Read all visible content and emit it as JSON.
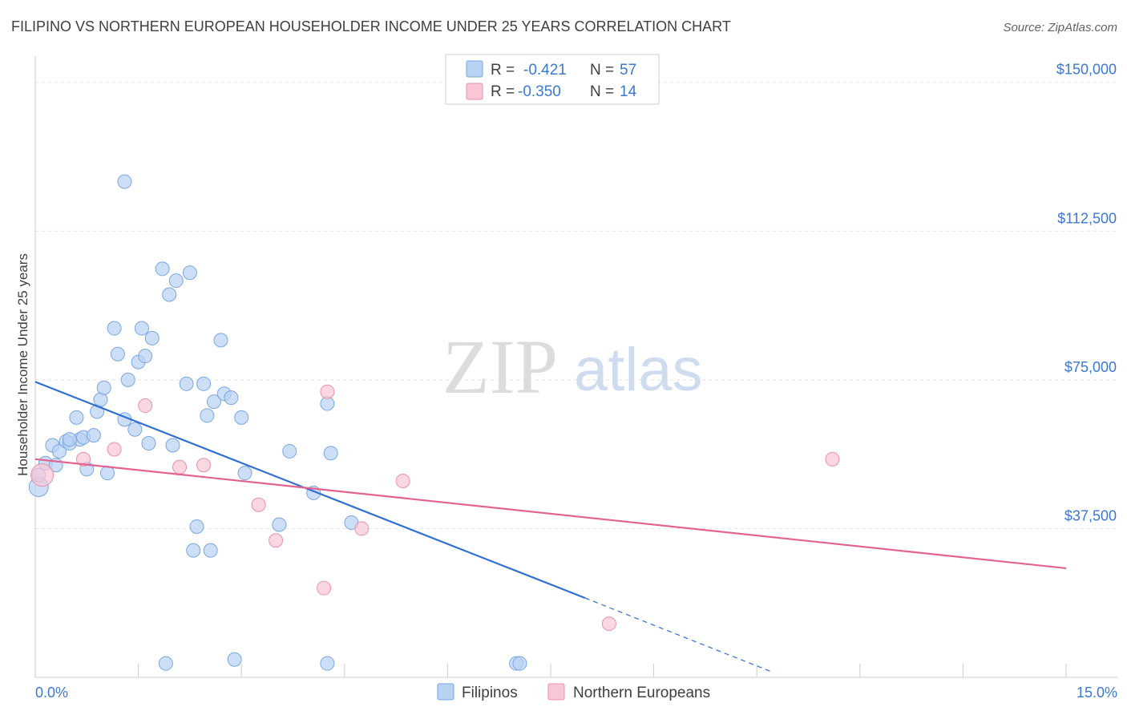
{
  "title": "FILIPINO VS NORTHERN EUROPEAN HOUSEHOLDER INCOME UNDER 25 YEARS CORRELATION CHART",
  "source": "Source: ZipAtlas.com",
  "watermark": {
    "part1": "ZIP",
    "part2": "atlas"
  },
  "colors": {
    "blue_fill": "#b8d2f4",
    "blue_stroke": "#7aa6df",
    "blue_line": "#2f6fd1",
    "pink_fill": "#f8c6d4",
    "pink_stroke": "#e891ac",
    "pink_line": "#e2638f",
    "tick_text": "#3b78d0"
  },
  "legend": {
    "row1": {
      "r_label": "R =",
      "r_value": "-0.421",
      "n_label": "N =",
      "n_value": "57"
    },
    "row2": {
      "r_label": "R =",
      "r_value": "-0.350",
      "n_label": "N =",
      "n_value": "14"
    }
  },
  "chart_data": {
    "type": "scatter",
    "title": "FILIPINO VS NORTHERN EUROPEAN HOUSEHOLDER INCOME UNDER 25 YEARS CORRELATION CHART",
    "xlabel": "",
    "ylabel": "Householder Income Under 25 years",
    "xlim": [
      0,
      15
    ],
    "ylim": [
      0,
      155000
    ],
    "x_tick_labels": [
      "0.0%",
      "15.0%"
    ],
    "y_ticks": [
      37500,
      75000,
      112500,
      150000
    ],
    "y_tick_labels": [
      "$37,500",
      "$75,000",
      "$112,500",
      "$150,000"
    ],
    "grid": true,
    "legend_position": "top-center",
    "series": [
      {
        "name": "Filipinos",
        "color": "#b8d2f4",
        "points": [
          [
            0.05,
            48000
          ],
          [
            0.05,
            51000
          ],
          [
            0.15,
            54000
          ],
          [
            0.25,
            58500
          ],
          [
            0.3,
            53500
          ],
          [
            0.35,
            57000
          ],
          [
            0.45,
            59500
          ],
          [
            0.5,
            59000
          ],
          [
            0.6,
            65500
          ],
          [
            0.65,
            60000
          ],
          [
            0.7,
            60500
          ],
          [
            0.75,
            52500
          ],
          [
            0.85,
            61000
          ],
          [
            0.9,
            67000
          ],
          [
            0.95,
            70000
          ],
          [
            1.0,
            73000
          ],
          [
            1.05,
            51500
          ],
          [
            1.15,
            88000
          ],
          [
            1.2,
            81500
          ],
          [
            1.3,
            125000
          ],
          [
            1.3,
            65000
          ],
          [
            1.35,
            75000
          ],
          [
            1.45,
            62500
          ],
          [
            1.5,
            79500
          ],
          [
            1.55,
            88000
          ],
          [
            1.6,
            81000
          ],
          [
            1.65,
            59000
          ],
          [
            1.7,
            85500
          ],
          [
            1.85,
            103000
          ],
          [
            1.9,
            3500
          ],
          [
            1.95,
            96500
          ],
          [
            2.0,
            58500
          ],
          [
            2.05,
            100000
          ],
          [
            2.2,
            74000
          ],
          [
            2.25,
            102000
          ],
          [
            2.3,
            32000
          ],
          [
            2.35,
            38000
          ],
          [
            2.45,
            74000
          ],
          [
            2.5,
            66000
          ],
          [
            2.55,
            32000
          ],
          [
            2.6,
            69500
          ],
          [
            2.7,
            85000
          ],
          [
            2.75,
            71500
          ],
          [
            2.85,
            70500
          ],
          [
            2.9,
            4500
          ],
          [
            3.0,
            65500
          ],
          [
            3.05,
            51500
          ],
          [
            3.55,
            38500
          ],
          [
            3.7,
            57000
          ],
          [
            4.05,
            46500
          ],
          [
            4.25,
            69000
          ],
          [
            4.3,
            56500
          ],
          [
            4.25,
            3500
          ],
          [
            4.6,
            39000
          ],
          [
            7.0,
            3500
          ],
          [
            7.05,
            3500
          ],
          [
            0.5,
            60000
          ]
        ]
      },
      {
        "name": "Northern Europeans",
        "color": "#f8c6d4",
        "points": [
          [
            0.1,
            51000
          ],
          [
            0.7,
            55000
          ],
          [
            1.15,
            57500
          ],
          [
            1.6,
            68500
          ],
          [
            2.1,
            53000
          ],
          [
            2.45,
            53500
          ],
          [
            3.25,
            43500
          ],
          [
            3.5,
            34500
          ],
          [
            4.2,
            22500
          ],
          [
            4.25,
            72000
          ],
          [
            4.75,
            37500
          ],
          [
            5.35,
            49500
          ],
          [
            8.35,
            13500
          ],
          [
            11.6,
            55000
          ]
        ]
      }
    ],
    "trendlines": [
      {
        "series": "Filipinos",
        "x_start": 0.0,
        "y_start": 74500,
        "x_solid_end": 8.0,
        "y_solid_end": 20000,
        "x_dash_end": 10.7,
        "y_dash_end": 1500
      },
      {
        "series": "Northern Europeans",
        "x_start": 0.0,
        "y_start": 55000,
        "x_end": 15.0,
        "y_end": 27500
      }
    ]
  },
  "bottom_legend": [
    {
      "label": "Filipinos"
    },
    {
      "label": "Northern Europeans"
    }
  ]
}
